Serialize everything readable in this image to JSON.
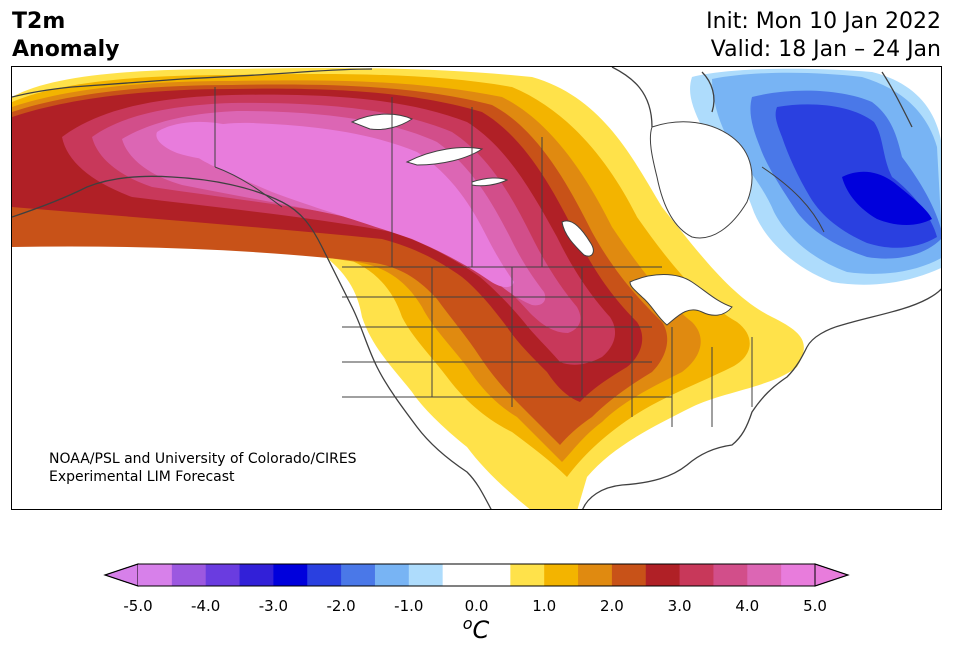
{
  "header": {
    "title_line1": "T2m",
    "title_line2": "Anomaly",
    "init_label": "Init: Mon 10 Jan 2022",
    "valid_label": "Valid: 18 Jan – 24 Jan"
  },
  "credit": {
    "line1": "NOAA/PSL and University of Colorado/CIRES",
    "line2": "Experimental LIM Forecast"
  },
  "legend": {
    "unit_base": "C",
    "unit_sup": "o",
    "colors": [
      "#d780ea",
      "#9c58e0",
      "#6a3ce0",
      "#3220d8",
      "#0000dc",
      "#2a40e0",
      "#4a78e8",
      "#78b4f4",
      "#aedcfc",
      "#ffffff",
      "#ffffff",
      "#ffe24a",
      "#f3b400",
      "#e08a10",
      "#c85218",
      "#b02026",
      "#c8385a",
      "#d24e8a",
      "#dc66b4",
      "#e87cdc"
    ],
    "ticks": [
      "-5.0",
      "-4.0",
      "-3.0",
      "-2.0",
      "-1.0",
      "0.0",
      "1.0",
      "2.0",
      "3.0",
      "4.0",
      "5.0"
    ]
  },
  "map_colors": {
    "yellow": "#ffe24a",
    "gold": "#f3b400",
    "orange": "#e08a10",
    "burnt": "#c85218",
    "red": "#b02026",
    "crimson": "#c8385a",
    "rose": "#d24e8a",
    "pink": "#dc66b4",
    "magenta": "#e87cdc",
    "lightblue": "#aedcfc",
    "skyblue": "#78b4f4",
    "midblue": "#4a78e8",
    "blue": "#2a40e0",
    "deepblue": "#0000dc",
    "coast": "#404040"
  }
}
